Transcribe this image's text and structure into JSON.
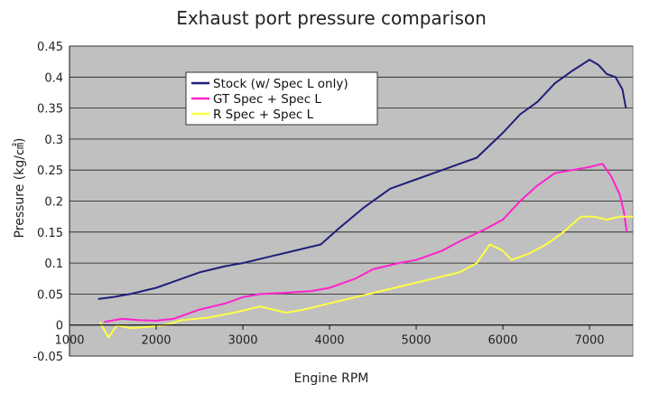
{
  "chart_data": {
    "type": "line",
    "title": "Exhaust port pressure comparison",
    "xlabel": "Engine RPM",
    "ylabel": "Pressure (kg/㎠)",
    "xlim": [
      1000,
      7500
    ],
    "ylim": [
      -0.05,
      0.45
    ],
    "x_ticks": [
      "1000",
      "2000",
      "3000",
      "4000",
      "5000",
      "6000",
      "7000"
    ],
    "y_ticks": [
      "-0.05",
      "0",
      "0.05",
      "0.1",
      "0.15",
      "0.2",
      "0.25",
      "0.3",
      "0.35",
      "0.4",
      "0.45"
    ],
    "grid": true,
    "legend": "inside-top-left",
    "plot_background": "#c0c0c0",
    "series": [
      {
        "name": "Stock (w/ Spec L only)",
        "color": "#1f1f7a",
        "x": [
          1330,
          1500,
          1700,
          2000,
          2200,
          2500,
          2800,
          3000,
          3300,
          3600,
          3900,
          4100,
          4400,
          4700,
          5000,
          5300,
          5500,
          5700,
          6000,
          6200,
          6400,
          6600,
          6800,
          7000,
          7100,
          7200,
          7300,
          7380,
          7420
        ],
        "y": [
          0.042,
          0.045,
          0.05,
          0.06,
          0.07,
          0.085,
          0.095,
          0.1,
          0.11,
          0.12,
          0.13,
          0.155,
          0.19,
          0.22,
          0.235,
          0.25,
          0.26,
          0.27,
          0.31,
          0.34,
          0.36,
          0.39,
          0.41,
          0.428,
          0.42,
          0.405,
          0.4,
          0.38,
          0.35
        ]
      },
      {
        "name": "GT Spec + Spec L",
        "color": "#ff22cc",
        "x": [
          1400,
          1600,
          1800,
          2000,
          2200,
          2500,
          2800,
          3000,
          3200,
          3500,
          3800,
          4000,
          4300,
          4500,
          4800,
          5000,
          5300,
          5500,
          5800,
          6000,
          6200,
          6400,
          6600,
          6800,
          7000,
          7150,
          7250,
          7350,
          7400,
          7430
        ],
        "y": [
          0.005,
          0.01,
          0.008,
          0.007,
          0.01,
          0.025,
          0.035,
          0.045,
          0.05,
          0.052,
          0.055,
          0.06,
          0.075,
          0.09,
          0.1,
          0.105,
          0.12,
          0.135,
          0.155,
          0.17,
          0.2,
          0.225,
          0.245,
          0.25,
          0.255,
          0.26,
          0.24,
          0.21,
          0.18,
          0.15
        ]
      },
      {
        "name": "R Spec + Spec L",
        "color": "#ffff44",
        "x": [
          1350,
          1450,
          1550,
          1700,
          1900,
          2100,
          2300,
          2600,
          2900,
          3200,
          3500,
          3700,
          4000,
          4300,
          4600,
          4900,
          5200,
          5500,
          5700,
          5850,
          6000,
          6100,
          6300,
          6500,
          6700,
          6900,
          7050,
          7200,
          7350,
          7500
        ],
        "y": [
          0.005,
          -0.02,
          0.0,
          -0.005,
          -0.003,
          0.0,
          0.008,
          0.012,
          0.02,
          0.03,
          0.02,
          0.025,
          0.035,
          0.045,
          0.055,
          0.065,
          0.075,
          0.085,
          0.1,
          0.13,
          0.12,
          0.105,
          0.115,
          0.13,
          0.15,
          0.175,
          0.175,
          0.17,
          0.175,
          0.175
        ]
      }
    ]
  }
}
